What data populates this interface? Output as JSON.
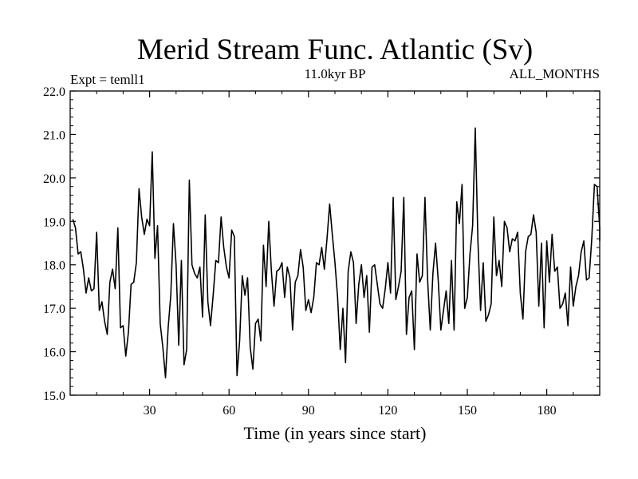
{
  "chart_data": {
    "type": "line",
    "title": "Merid Stream Func. Atlantic (Sv)",
    "subtitle": "11.0kyr BP",
    "top_left_label": "Expt = temll1",
    "top_right_label": "ALL_MONTHS",
    "xlabel": "Time (in years since start)",
    "ylabel": "",
    "xlim": [
      0,
      200
    ],
    "ylim": [
      15.0,
      22.0
    ],
    "x_ticks": [
      30,
      60,
      90,
      120,
      150,
      180
    ],
    "x_tick_labels": [
      "30",
      "60",
      "90",
      "120",
      "150",
      "180"
    ],
    "y_ticks": [
      15.0,
      16.0,
      17.0,
      18.0,
      19.0,
      20.0,
      21.0,
      22.0
    ],
    "y_tick_labels": [
      "15.0",
      "16.0",
      "17.0",
      "18.0",
      "19.0",
      "20.0",
      "21.0",
      "22.0"
    ],
    "line_color": "#000000",
    "series": [
      {
        "name": "Merid Stream Func. Atlantic",
        "x_start": 1,
        "x_step": 1,
        "values": [
          19.05,
          18.85,
          18.25,
          18.3,
          17.9,
          17.35,
          17.7,
          17.4,
          17.45,
          18.75,
          16.95,
          17.15,
          16.7,
          16.4,
          17.6,
          17.9,
          17.45,
          18.85,
          16.55,
          16.6,
          15.9,
          16.45,
          17.55,
          17.6,
          18.05,
          19.75,
          19.1,
          18.7,
          19.05,
          18.9,
          20.6,
          18.15,
          18.9,
          16.65,
          16.1,
          15.4,
          16.55,
          17.3,
          18.95,
          18.0,
          16.15,
          18.1,
          15.7,
          16.05,
          19.95,
          18.0,
          17.8,
          17.7,
          17.95,
          16.8,
          19.15,
          17.15,
          16.6,
          17.3,
          18.1,
          18.05,
          19.1,
          18.4,
          17.95,
          17.7,
          18.8,
          18.65,
          15.45,
          16.25,
          17.75,
          17.3,
          17.7,
          16.1,
          15.6,
          16.65,
          16.75,
          16.25,
          18.45,
          17.5,
          19.0,
          17.85,
          17.05,
          17.85,
          17.9,
          18.05,
          17.25,
          17.95,
          17.7,
          16.5,
          17.6,
          17.75,
          18.35,
          17.95,
          16.95,
          17.2,
          16.9,
          17.25,
          18.05,
          18.0,
          18.4,
          17.9,
          18.6,
          19.4,
          18.7,
          18.05,
          17.25,
          16.05,
          17.0,
          15.75,
          17.85,
          18.3,
          18.05,
          16.65,
          17.55,
          18.0,
          17.25,
          17.75,
          16.45,
          17.95,
          18.0,
          17.55,
          17.1,
          17.0,
          17.45,
          18.05,
          17.35,
          19.55,
          17.2,
          17.5,
          17.85,
          19.55,
          16.4,
          17.25,
          17.4,
          16.05,
          18.25,
          17.6,
          17.75,
          19.55,
          17.65,
          16.5,
          17.8,
          18.5,
          17.65,
          16.5,
          16.95,
          17.4,
          16.65,
          18.1,
          16.5,
          19.45,
          18.95,
          19.85,
          17.0,
          17.25,
          18.25,
          18.9,
          21.15,
          18.55,
          16.95,
          18.05,
          16.7,
          16.85,
          17.1,
          19.1,
          17.75,
          18.1,
          17.5,
          19.0,
          18.85,
          18.3,
          18.6,
          18.55,
          18.75,
          17.35,
          16.75,
          18.3,
          18.65,
          18.7,
          19.15,
          18.75,
          17.05,
          18.5,
          16.55,
          18.55,
          17.6,
          18.7,
          17.85,
          17.95,
          17.0,
          17.1,
          17.35,
          16.6,
          17.95,
          17.05,
          17.5,
          17.75,
          18.3,
          18.55,
          17.65,
          17.7,
          18.6,
          19.85,
          19.8,
          18.85,
          18.6,
          18.55
        ]
      }
    ]
  }
}
